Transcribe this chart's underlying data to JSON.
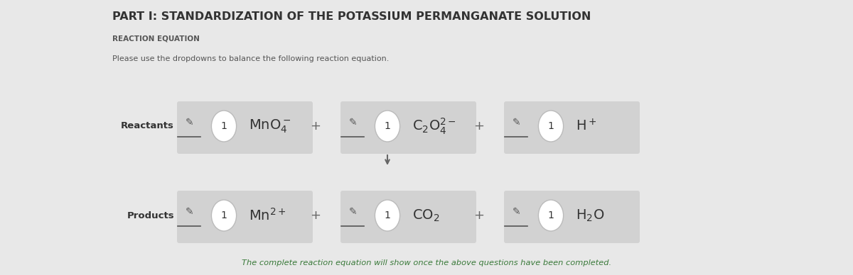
{
  "title": "PART I: STANDARDIZATION OF THE POTASSIUM PERMANGANATE SOLUTION",
  "subtitle": "REACTION EQUATION",
  "instruction": "Please use the dropdowns to balance the following reaction equation.",
  "footer": "The complete reaction equation will show once the above questions have been completed.",
  "bg_color": "#e8e8e8",
  "title_color": "#333333",
  "subtitle_color": "#555555",
  "instruction_color": "#555555",
  "footer_color": "#3a7a3a",
  "reactants_label": "Reactants",
  "products_label": "Products",
  "circle_color": "#ffffff",
  "circle_edge_color": "#bbbbbb",
  "panel_color": "#d2d2d2"
}
